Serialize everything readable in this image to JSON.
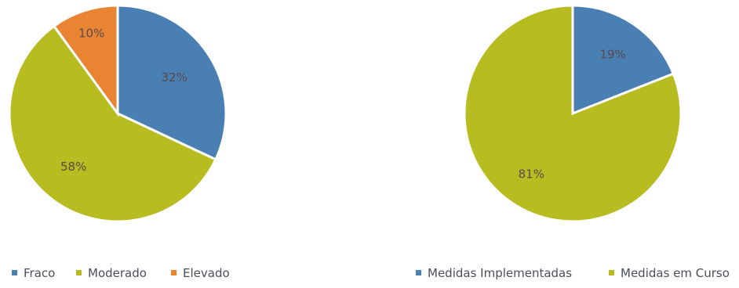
{
  "chart_data": [
    {
      "type": "pie",
      "title": "",
      "slices": [
        {
          "label": "Fraco",
          "value": 32,
          "display": "32%",
          "color": "#4a7fb3"
        },
        {
          "label": "Moderado",
          "value": 58,
          "display": "58%",
          "color": "#b7bc20"
        },
        {
          "label": "Elevado",
          "value": 10,
          "display": "10%",
          "color": "#e98532"
        }
      ],
      "start": "12 o'clock",
      "direction": "clockwise",
      "legend": "bottom"
    },
    {
      "type": "pie",
      "title": "",
      "slices": [
        {
          "label": "Medidas Implementadas",
          "value": 19,
          "display": "19%",
          "color": "#4a7fb3"
        },
        {
          "label": "Medidas em Curso",
          "value": 81,
          "display": "81%",
          "color": "#b7bc20"
        }
      ],
      "start": "12 o'clock",
      "direction": "clockwise",
      "legend": "bottom"
    }
  ]
}
